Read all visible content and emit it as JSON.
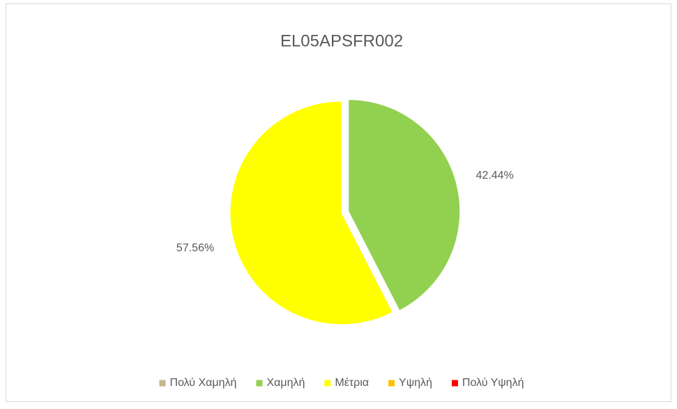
{
  "chart_data": {
    "type": "pie",
    "title": "EL05APSFR002",
    "categories": [
      "Πολύ Χαμηλή",
      "Χαμηλή",
      "Μέτρια",
      "Υψηλή",
      "Πολύ Υψηλή"
    ],
    "values": [
      0,
      42.44,
      57.56,
      0,
      0
    ],
    "value_labels": [
      null,
      "42.44%",
      "57.56%",
      null,
      null
    ],
    "colors": [
      "#c4b68e",
      "#92d050",
      "#ffff00",
      "#ffc000",
      "#ff0000"
    ],
    "legend": "bottom"
  }
}
